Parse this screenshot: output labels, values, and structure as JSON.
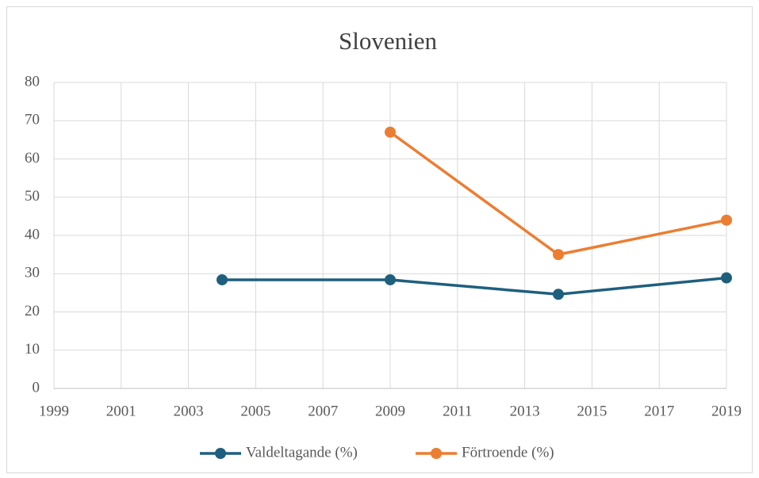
{
  "chart_data": {
    "type": "line",
    "title": "Slovenien",
    "x": [
      2004,
      2009,
      2014,
      2019
    ],
    "series": [
      {
        "name": "Valdeltagande (%)",
        "color": "#1f5f7e",
        "values": [
          28.4,
          28.4,
          24.6,
          28.9
        ]
      },
      {
        "name": "Förtroende (%)",
        "color": "#ed7d31",
        "values": [
          null,
          67,
          35,
          44
        ]
      }
    ],
    "xlim": [
      1999,
      2019
    ],
    "xticks": [
      1999,
      2001,
      2003,
      2005,
      2007,
      2009,
      2011,
      2013,
      2015,
      2017,
      2019
    ],
    "ylim": [
      0,
      80
    ],
    "yticks": [
      0,
      10,
      20,
      30,
      40,
      50,
      60,
      70,
      80
    ],
    "grid": true,
    "legend": "bottom"
  }
}
